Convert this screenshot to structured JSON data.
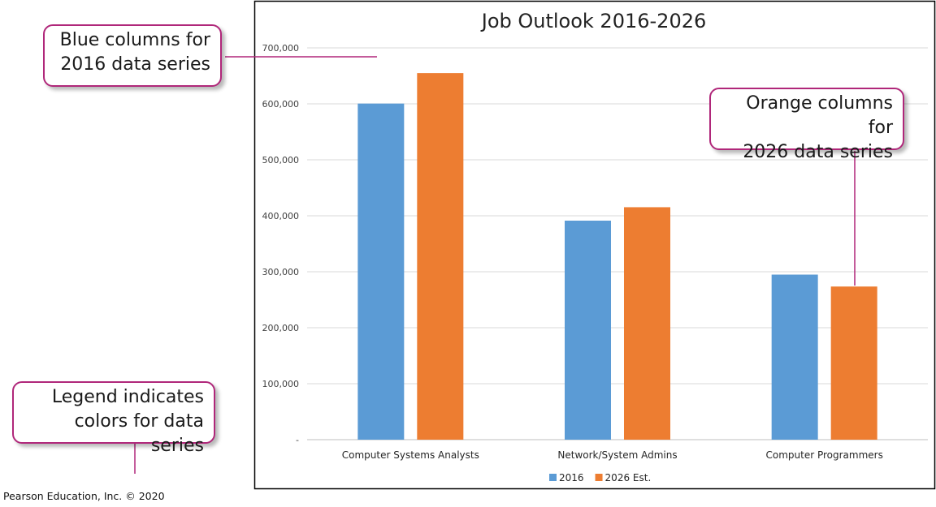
{
  "chart_data": {
    "type": "bar",
    "title": "Job Outlook 2016-2026",
    "categories": [
      "Computer Systems Analysts",
      "Network/System Admins",
      "Computer Programmers"
    ],
    "series": [
      {
        "name": "2016",
        "color": "#5b9bd5",
        "values": [
          600500,
          391300,
          294900
        ]
      },
      {
        "name": "2026 Est.",
        "color": "#ed7d31",
        "values": [
          654900,
          415300,
          273600
        ]
      }
    ],
    "ylim": [
      0,
      700000
    ],
    "y_ticks": [
      {
        "value": 0,
        "label": "-"
      },
      {
        "value": 100000,
        "label": "100,000"
      },
      {
        "value": 200000,
        "label": "200,000"
      },
      {
        "value": 300000,
        "label": "300,000"
      },
      {
        "value": 400000,
        "label": "400,000"
      },
      {
        "value": 500000,
        "label": "500,000"
      },
      {
        "value": 600000,
        "label": "600,000"
      },
      {
        "value": 700000,
        "label": "700,000"
      }
    ],
    "grid": true,
    "legend_position": "bottom"
  },
  "callouts": {
    "blue": "Blue columns for\n2016 data series",
    "orange": "Orange columns for\n2026 data series",
    "legend": "Legend indicates\ncolors for data series"
  },
  "credit": "Pearson Education, Inc. © 2020",
  "colors": {
    "callout_border": "#b0277a",
    "grid": "#d9d9d9",
    "frame": "#000000"
  }
}
